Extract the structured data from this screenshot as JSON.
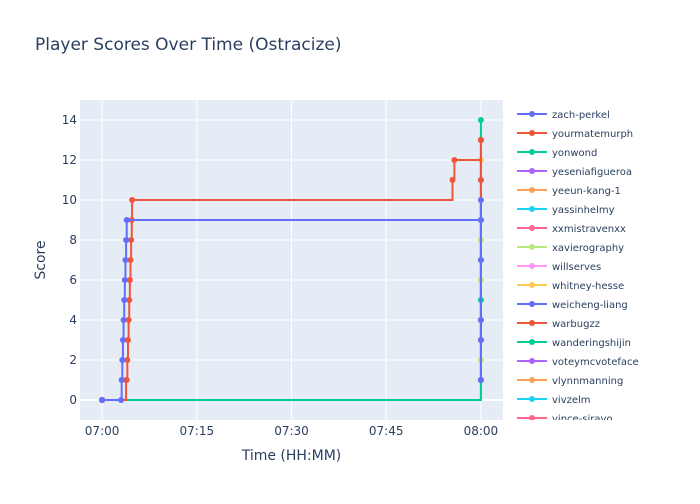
{
  "chart_data": {
    "type": "line",
    "title": "Player Scores Over Time (Ostracize)",
    "xlabel": "Time (HH:MM)",
    "ylabel": "Score",
    "x_ticks": [
      {
        "value": 0,
        "label": "07:00"
      },
      {
        "value": 15,
        "label": "07:15"
      },
      {
        "value": 30,
        "label": "07:30"
      },
      {
        "value": 45,
        "label": "07:45"
      },
      {
        "value": 60,
        "label": "08:00"
      }
    ],
    "xlim": [
      -3.5,
      63.5
    ],
    "ylim": [
      -1,
      15
    ],
    "y_ticks": [
      0,
      2,
      4,
      6,
      8,
      10,
      12,
      14
    ],
    "grid": true,
    "legend_placement": "right",
    "series": [
      {
        "name": "zach-perkel",
        "color": "#636efa",
        "x": [
          0,
          3,
          3.1,
          3.2,
          3.3,
          3.4,
          3.5,
          3.6,
          3.7,
          3.8,
          3.9,
          60,
          60,
          60,
          60,
          60,
          60,
          60
        ],
        "y": [
          0,
          0,
          1,
          2,
          3,
          4,
          5,
          6,
          7,
          8,
          9,
          10,
          9,
          7,
          4,
          3,
          1,
          1
        ]
      },
      {
        "name": "yourmatemurph",
        "color": "#ef553b",
        "x": [
          0,
          3.8,
          3.9,
          4.0,
          4.1,
          4.2,
          4.3,
          4.4,
          4.5,
          4.6,
          4.7,
          4.75,
          55.5,
          55.8,
          60,
          60,
          60,
          60,
          60
        ],
        "y": [
          0,
          1,
          1,
          2,
          3,
          4,
          5,
          6,
          7,
          8,
          9,
          10,
          11,
          12,
          13,
          13,
          11,
          4,
          3
        ]
      },
      {
        "name": "yonwond",
        "color": "#00cc96",
        "x": [
          0,
          60,
          60,
          60,
          60,
          60,
          60,
          60,
          60
        ],
        "y": [
          0,
          1,
          3,
          5,
          7,
          9,
          11,
          13,
          14
        ]
      },
      {
        "name": "yeseniafigueroa",
        "color": "#ab63fa",
        "x": [
          0
        ],
        "y": [
          0
        ]
      },
      {
        "name": "yeeun-kang-1",
        "color": "#ffa15a",
        "x": [
          0
        ],
        "y": [
          0
        ]
      },
      {
        "name": "yassinhelmy",
        "color": "#19d3f3",
        "x": [
          0
        ],
        "y": [
          0
        ]
      },
      {
        "name": "xxmistravenxx",
        "color": "#ff6692",
        "x": [
          0
        ],
        "y": [
          0
        ]
      },
      {
        "name": "xavierography",
        "color": "#b6e880",
        "x": [
          0,
          60,
          60,
          60,
          60
        ],
        "y": [
          0,
          2,
          6,
          8,
          10
        ]
      },
      {
        "name": "willserves",
        "color": "#ff97ff",
        "x": [
          0
        ],
        "y": [
          0
        ]
      },
      {
        "name": "whitney-hesse",
        "color": "#fecb52",
        "x": [
          0,
          60
        ],
        "y": [
          0,
          12
        ]
      },
      {
        "name": "weicheng-liang",
        "color": "#636efa",
        "x": [
          0
        ],
        "y": [
          0
        ]
      },
      {
        "name": "warbugzz",
        "color": "#ef553b",
        "x": [
          0
        ],
        "y": [
          0
        ]
      },
      {
        "name": "wanderingshijin",
        "color": "#00cc96",
        "x": [
          0
        ],
        "y": [
          0
        ]
      },
      {
        "name": "voteymcvoteface",
        "color": "#ab63fa",
        "x": [
          0
        ],
        "y": [
          0
        ]
      },
      {
        "name": "vlynnmanning",
        "color": "#ffa15a",
        "x": [
          0
        ],
        "y": [
          0
        ]
      },
      {
        "name": "vivzelm",
        "color": "#19d3f3",
        "x": [
          0
        ],
        "y": [
          0
        ]
      },
      {
        "name": "vince-siravo",
        "color": "#ff6692",
        "x": [
          0
        ],
        "y": [
          0
        ]
      }
    ]
  }
}
